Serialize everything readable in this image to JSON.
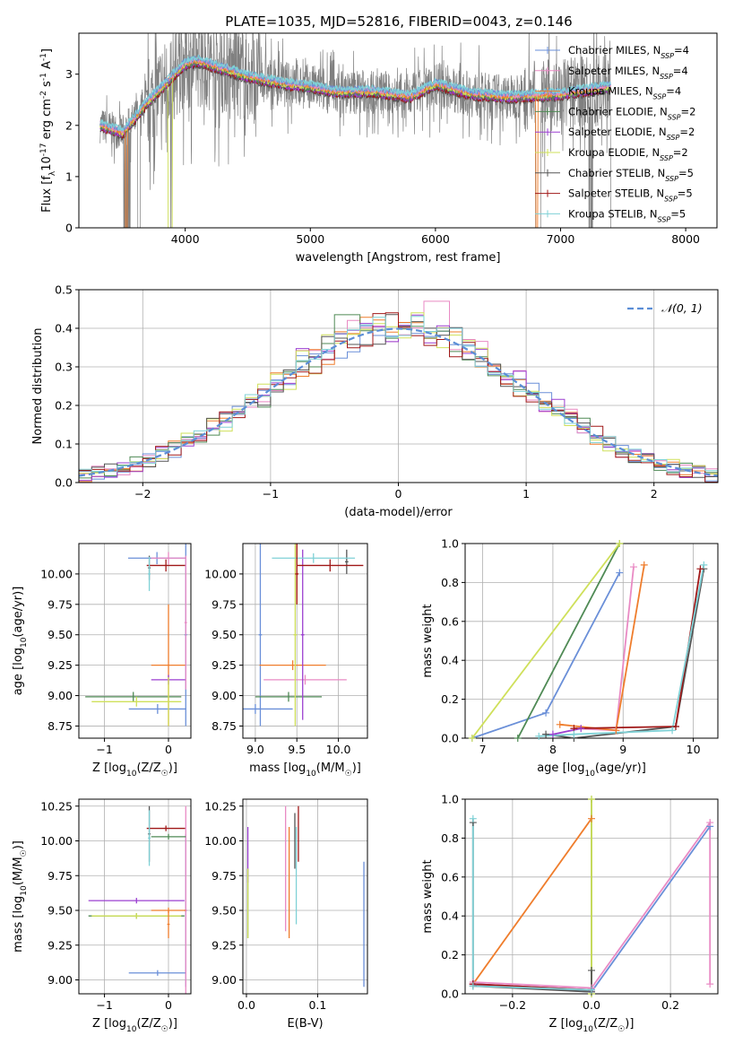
{
  "figure": {
    "title": "PLATE=1035, MJD=52816, FIBERID=0043, z=0.146"
  },
  "colors": {
    "Chabrier MILES": "#6a8fd8",
    "Salpeter MILES": "#e98ac4",
    "Kroupa MILES": "#ef7d2c",
    "Chabrier ELODIE": "#4f8a55",
    "Salpeter ELODIE": "#9b3fd0",
    "Kroupa ELODIE": "#cfe05a",
    "Chabrier STELIB": "#555555",
    "Salpeter STELIB": "#a01818",
    "Kroupa STELIB": "#7fd1d6",
    "data": "#808080",
    "normal": "#5b8ed6"
  },
  "chart_data": [
    {
      "id": "spectrum",
      "type": "line",
      "xlabel": "wavelength [Angstrom, rest frame]",
      "ylabel": "Flux [f_λ10^-17 erg cm^-2 s^-1 A^-1]",
      "xlim": [
        3150,
        8250
      ],
      "ylim": [
        0,
        3.8
      ],
      "xticks": [
        4000,
        5000,
        6000,
        7000,
        8000
      ],
      "yticks": [
        0,
        1,
        2,
        3
      ],
      "grid": false,
      "legend_loc": "right",
      "series": [
        {
          "name": "Chabrier MILES",
          "nssp": "4"
        },
        {
          "name": "Salpeter MILES",
          "nssp": "4"
        },
        {
          "name": "Kroupa MILES",
          "nssp": "4"
        },
        {
          "name": "Chabrier ELODIE",
          "nssp": "2"
        },
        {
          "name": "Salpeter ELODIE",
          "nssp": "2"
        },
        {
          "name": "Kroupa ELODIE",
          "nssp": "2"
        },
        {
          "name": "Chabrier STELIB",
          "nssp": "5"
        },
        {
          "name": "Salpeter STELIB",
          "nssp": "5"
        },
        {
          "name": "Kroupa STELIB",
          "nssp": "5"
        }
      ],
      "continuum": {
        "x": [
          3320,
          3500,
          3700,
          3760,
          3900,
          4000,
          4100,
          4300,
          4500,
          4800,
          5000,
          5200,
          5500,
          5800,
          6000,
          6300,
          6600,
          7000,
          7400
        ],
        "y": [
          2.0,
          1.85,
          2.45,
          2.6,
          2.95,
          3.2,
          3.25,
          3.1,
          2.95,
          2.8,
          2.75,
          2.65,
          2.65,
          2.55,
          2.8,
          2.6,
          2.55,
          2.6,
          2.75
        ]
      },
      "model_x_range": [
        3320,
        7400
      ],
      "data_x_range": [
        3320,
        7450
      ]
    },
    {
      "id": "residuals",
      "type": "line",
      "xlabel": "(data-model)/error",
      "ylabel": "Normed distribution",
      "xlim": [
        -2.5,
        2.5
      ],
      "ylim": [
        0,
        0.5
      ],
      "xticks": [
        -2,
        -1,
        0,
        1,
        2
      ],
      "yticks": [
        0,
        0.1,
        0.2,
        0.3,
        0.4,
        0.5
      ],
      "grid": true,
      "legend": [
        "𝒩(0, 1)"
      ],
      "legend_loc": "top-right",
      "bin_width": 0.1
    },
    {
      "id": "age-vs-Z",
      "type": "scatter",
      "xlabel": "Z [log10(Z/Z☉)]",
      "ylabel": "age  [log10(age/yr)]",
      "xlim": [
        -1.4,
        0.35
      ],
      "ylim": [
        8.65,
        10.25
      ],
      "xticks": [
        -1,
        0
      ],
      "yticks": [
        8.75,
        9.0,
        9.25,
        9.5,
        9.75,
        10.0
      ],
      "grid": true,
      "points": [
        {
          "series": "Chabrier MILES",
          "x": -0.18,
          "y": 10.13,
          "xerr": 0.45,
          "yerr": 0.05
        },
        {
          "series": "Salpeter MILES",
          "x": 0.0,
          "y": 10.13,
          "xerr": 0.27,
          "yerr": 0.05
        },
        {
          "series": "Kroupa MILES",
          "x": 0.0,
          "y": 9.25,
          "xerr": 0.27,
          "yerr": 0.5
        },
        {
          "series": "Chabrier ELODIE",
          "x": -0.55,
          "y": 8.99,
          "xerr": 0.75,
          "yerr": 0.04
        },
        {
          "series": "Salpeter ELODIE",
          "x": 0.0,
          "y": 9.13,
          "xerr": 0.27,
          "yerr": 0.04
        },
        {
          "series": "Kroupa ELODIE",
          "x": -0.5,
          "y": 8.95,
          "xerr": 0.7,
          "yerr": 0.04
        },
        {
          "series": "Chabrier STELIB",
          "x": -0.3,
          "y": 10.05,
          "xerr": 0.02,
          "yerr": 0.1
        },
        {
          "series": "Salpeter STELIB",
          "x": -0.04,
          "y": 10.07,
          "xerr": 0.3,
          "yerr": 0.05
        },
        {
          "series": "Kroupa STELIB",
          "x": -0.3,
          "y": 10.0,
          "xerr": 0.02,
          "yerr": 0.14
        },
        {
          "series": "Chabrier MILES",
          "x": -0.17,
          "y": 8.89,
          "xerr": 0.45,
          "yerr": 0.04
        },
        {
          "series": "Chabrier MILES",
          "x": 0.27,
          "y": 9.5,
          "xerr": 0.02,
          "yerr": 0.75
        },
        {
          "series": "Salpeter MILES",
          "x": 0.27,
          "y": 9.6,
          "xerr": 0.02,
          "yerr": 0.55
        },
        {
          "series": "Kroupa ELODIE",
          "x": 0.0,
          "y": 8.95,
          "xerr": 0.02,
          "yerr": 0.2
        }
      ]
    },
    {
      "id": "age-vs-mass",
      "type": "scatter",
      "xlabel": "mass [log10(M/M☉)]",
      "ylabel": "",
      "xlim": [
        8.85,
        10.35
      ],
      "ylim": [
        8.65,
        10.25
      ],
      "xticks": [
        9.0,
        9.5,
        10.0
      ],
      "yticks": [
        8.75,
        9.0,
        9.25,
        9.5,
        9.75,
        10.0
      ],
      "grid": true,
      "points": [
        {
          "series": "Chabrier MILES",
          "x": 9.0,
          "y": 8.89,
          "xerr": 0.45,
          "yerr": 0.04
        },
        {
          "series": "Chabrier MILES",
          "x": 9.06,
          "y": 9.5,
          "xerr": 0.02,
          "yerr": 0.75
        },
        {
          "series": "Salpeter MILES",
          "x": 9.6,
          "y": 9.13,
          "xerr": 0.5,
          "yerr": 0.04
        },
        {
          "series": "Kroupa MILES",
          "x": 9.45,
          "y": 9.25,
          "xerr": 0.4,
          "yerr": 0.04
        },
        {
          "series": "Chabrier ELODIE",
          "x": 9.4,
          "y": 8.99,
          "xerr": 0.4,
          "yerr": 0.04
        },
        {
          "series": "Salpeter ELODIE",
          "x": 9.57,
          "y": 9.5,
          "xerr": 0.02,
          "yerr": 0.7
        },
        {
          "series": "Kroupa ELODIE",
          "x": 9.48,
          "y": 9.5,
          "xerr": 0.02,
          "yerr": 0.75
        },
        {
          "series": "Chabrier STELIB",
          "x": 10.1,
          "y": 10.1,
          "xerr": 0.02,
          "yerr": 0.1
        },
        {
          "series": "Salpeter STELIB",
          "x": 9.9,
          "y": 10.07,
          "xerr": 0.4,
          "yerr": 0.05
        },
        {
          "series": "Kroupa STELIB",
          "x": 9.7,
          "y": 10.13,
          "xerr": 0.5,
          "yerr": 0.04
        },
        {
          "series": "Kroupa MILES",
          "x": 9.5,
          "y": 10.0,
          "xerr": 0.02,
          "yerr": 0.25
        },
        {
          "series": "Salpeter STELIB",
          "x": 9.5,
          "y": 10.0,
          "xerr": 0.02,
          "yerr": 0.25
        }
      ]
    },
    {
      "id": "weight-vs-age",
      "type": "line",
      "xlabel": "age  [log10(age/yr)]",
      "ylabel": "mass weight",
      "xlim": [
        6.75,
        10.35
      ],
      "ylim": [
        0,
        1
      ],
      "xticks": [
        7,
        8,
        9,
        10
      ],
      "yticks": [
        0,
        0.2,
        0.4,
        0.6,
        0.8,
        1.0
      ],
      "grid": true,
      "series": [
        {
          "name": "Chabrier MILES",
          "x": [
            6.85,
            7.9,
            8.95
          ],
          "y": [
            0.0,
            0.13,
            0.85
          ]
        },
        {
          "name": "Salpeter MILES",
          "x": [
            8.3,
            8.9,
            9.15
          ],
          "y": [
            0.05,
            0.04,
            0.88
          ]
        },
        {
          "name": "Kroupa MILES",
          "x": [
            8.1,
            8.9,
            9.3
          ],
          "y": [
            0.07,
            0.04,
            0.89
          ]
        },
        {
          "name": "Chabrier ELODIE",
          "x": [
            7.5,
            8.95
          ],
          "y": [
            0.0,
            1.0
          ]
        },
        {
          "name": "Salpeter ELODIE",
          "x": [
            8.0,
            8.4
          ],
          "y": [
            0.02,
            0.05
          ]
        },
        {
          "name": "Kroupa ELODIE",
          "x": [
            6.85,
            8.95
          ],
          "y": [
            0.0,
            1.0
          ]
        },
        {
          "name": "Chabrier STELIB",
          "x": [
            7.9,
            8.3,
            9.75,
            10.15
          ],
          "y": [
            0.02,
            0.0,
            0.06,
            0.87
          ]
        },
        {
          "name": "Salpeter STELIB",
          "x": [
            8.3,
            9.75,
            10.1
          ],
          "y": [
            0.05,
            0.06,
            0.87
          ]
        },
        {
          "name": "Kroupa STELIB",
          "x": [
            7.8,
            8.3,
            9.7,
            10.15
          ],
          "y": [
            0.01,
            0.02,
            0.04,
            0.89
          ]
        }
      ]
    },
    {
      "id": "mass-vs-Z",
      "type": "scatter",
      "xlabel": "Z [log10(Z/Z☉)]",
      "ylabel": "mass [log10(M/M☉)]",
      "xlim": [
        -1.4,
        0.35
      ],
      "ylim": [
        8.9,
        10.3
      ],
      "xticks": [
        -1,
        0
      ],
      "yticks": [
        9.0,
        9.25,
        9.5,
        9.75,
        10.0,
        10.25
      ],
      "grid": true,
      "points": [
        {
          "series": "Chabrier MILES",
          "x": -0.17,
          "y": 9.05,
          "xerr": 0.45,
          "yerr": 0.02
        },
        {
          "series": "Chabrier MILES",
          "x": 0.27,
          "y": 9.5,
          "xerr": 0.02,
          "yerr": 0.55
        },
        {
          "series": "Salpeter MILES",
          "x": 0.27,
          "y": 9.5,
          "xerr": 0.02,
          "yerr": 0.75
        },
        {
          "series": "Salpeter ELODIE",
          "x": -0.5,
          "y": 9.57,
          "xerr": 0.75,
          "yerr": 0.02
        },
        {
          "series": "Kroupa MILES",
          "x": 0.0,
          "y": 9.5,
          "xerr": 0.27,
          "yerr": 0.02
        },
        {
          "series": "Chabrier ELODIE",
          "x": -0.5,
          "y": 9.46,
          "xerr": 0.75,
          "yerr": 0.02
        },
        {
          "series": "Kroupa ELODIE",
          "x": -0.5,
          "y": 9.46,
          "xerr": 0.7,
          "yerr": 0.02
        },
        {
          "series": "Salpeter STELIB",
          "x": -0.04,
          "y": 10.09,
          "xerr": 0.3,
          "yerr": 0.02
        },
        {
          "series": "Chabrier STELIB",
          "x": -0.3,
          "y": 10.05,
          "xerr": 0.02,
          "yerr": 0.2
        },
        {
          "series": "Kroupa STELIB",
          "x": -0.3,
          "y": 10.02,
          "xerr": 0.02,
          "yerr": 0.2
        },
        {
          "series": "Chabrier ELODIE",
          "x": 0.0,
          "y": 10.03,
          "xerr": 0.27,
          "yerr": 0.02
        },
        {
          "series": "Kroupa MILES",
          "x": 0.0,
          "y": 9.4,
          "xerr": 0.02,
          "yerr": 0.1
        }
      ]
    },
    {
      "id": "mass-vs-EBV",
      "type": "scatter",
      "xlabel": "E(B-V)",
      "ylabel": "",
      "xlim": [
        -0.005,
        0.17
      ],
      "ylim": [
        8.9,
        10.3
      ],
      "xticks": [
        0.0,
        0.1
      ],
      "yticks": [
        9.0,
        9.25,
        9.5,
        9.75,
        10.0,
        10.25
      ],
      "grid": true,
      "points": [
        {
          "series": "Chabrier MILES",
          "x": 0.165,
          "y": 9.4,
          "xerr": 0.0,
          "yerr": 0.45
        },
        {
          "series": "Salpeter MILES",
          "x": 0.055,
          "y": 9.8,
          "xerr": 0.0,
          "yerr": 0.45
        },
        {
          "series": "Kroupa MILES",
          "x": 0.06,
          "y": 9.7,
          "xerr": 0.0,
          "yerr": 0.4
        },
        {
          "series": "Chabrier ELODIE",
          "x": 0.002,
          "y": 9.55,
          "xerr": 0.0,
          "yerr": 0.25
        },
        {
          "series": "Salpeter ELODIE",
          "x": 0.002,
          "y": 9.9,
          "xerr": 0.0,
          "yerr": 0.2
        },
        {
          "series": "Kroupa ELODIE",
          "x": 0.002,
          "y": 9.55,
          "xerr": 0.0,
          "yerr": 0.25
        },
        {
          "series": "Chabrier STELIB",
          "x": 0.068,
          "y": 10.0,
          "xerr": 0.0,
          "yerr": 0.2
        },
        {
          "series": "Salpeter STELIB",
          "x": 0.073,
          "y": 10.05,
          "xerr": 0.0,
          "yerr": 0.2
        },
        {
          "series": "Kroupa STELIB",
          "x": 0.07,
          "y": 9.75,
          "xerr": 0.0,
          "yerr": 0.35
        }
      ]
    },
    {
      "id": "weight-vs-Z",
      "type": "line",
      "xlabel": "Z [log10(Z/Z☉)]",
      "ylabel": "mass weight",
      "xlim": [
        -0.32,
        0.32
      ],
      "ylim": [
        0,
        1
      ],
      "xticks": [
        -0.2,
        0.0,
        0.2
      ],
      "yticks": [
        0,
        0.2,
        0.4,
        0.6,
        0.8,
        1.0
      ],
      "grid": true,
      "series": [
        {
          "name": "Chabrier MILES",
          "x": [
            -0.3,
            0.0,
            0.3
          ],
          "y": [
            0.05,
            0.01,
            0.86
          ]
        },
        {
          "name": "Salpeter MILES",
          "x": [
            -0.3,
            0.0,
            0.3,
            0.3
          ],
          "y": [
            0.06,
            0.03,
            0.88,
            0.05
          ]
        },
        {
          "name": "Kroupa MILES",
          "x": [
            -0.3,
            0.0
          ],
          "y": [
            0.05,
            0.9
          ]
        },
        {
          "name": "Chabrier ELODIE",
          "x": [
            0.0,
            0.0
          ],
          "y": [
            0.0,
            1.0
          ]
        },
        {
          "name": "Salpeter ELODIE",
          "x": [
            -0.3,
            0.0
          ],
          "y": [
            0.05,
            0.02
          ]
        },
        {
          "name": "Kroupa ELODIE",
          "x": [
            0.0,
            0.0
          ],
          "y": [
            0.0,
            1.0
          ]
        },
        {
          "name": "Chabrier STELIB",
          "x": [
            -0.3,
            -0.3,
            0.0,
            0.0
          ],
          "y": [
            0.88,
            0.04,
            0.01,
            0.12
          ]
        },
        {
          "name": "Salpeter STELIB",
          "x": [
            -0.3,
            0.0
          ],
          "y": [
            0.05,
            0.02
          ]
        },
        {
          "name": "Kroupa STELIB",
          "x": [
            -0.3,
            -0.3,
            0.0
          ],
          "y": [
            0.9,
            0.04,
            0.02
          ]
        }
      ]
    }
  ]
}
